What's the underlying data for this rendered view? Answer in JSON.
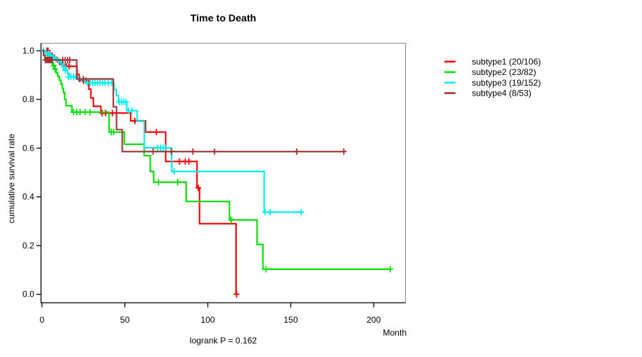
{
  "chart_data": {
    "type": "line",
    "variant": "kaplan_meier_step_plot",
    "title": "Time to Death",
    "xlabel": "Month",
    "ylabel": "cumulative survival rate",
    "annotation": "logrank P = 0.162",
    "xlim": [
      0,
      219
    ],
    "ylim": [
      0.0,
      1.0
    ],
    "grid": false,
    "legend_position": "right-outside",
    "xticks": [
      "0",
      "50",
      "100",
      "150",
      "200"
    ],
    "xtick_values": [
      0,
      50,
      100,
      150,
      200
    ],
    "yticks": [
      "0.0",
      "0.2",
      "0.4",
      "0.6",
      "0.8",
      "1.0"
    ],
    "ytick_values": [
      0.0,
      0.2,
      0.4,
      0.6,
      0.8,
      1.0
    ],
    "series": [
      {
        "name": "subtype1 (20/106)",
        "color": "#ff0000",
        "end": 117.3,
        "steps": [
          [
            0,
            1.0
          ],
          [
            4,
            0.99
          ],
          [
            6,
            0.981
          ],
          [
            7.5,
            0.971
          ],
          [
            9,
            0.962
          ],
          [
            10.5,
            0.953
          ],
          [
            12,
            0.944
          ],
          [
            13.5,
            0.936
          ],
          [
            21.2,
            0.903
          ],
          [
            22.3,
            0.877
          ],
          [
            28.3,
            0.842
          ],
          [
            29.5,
            0.806
          ],
          [
            31,
            0.772
          ],
          [
            35.5,
            0.744
          ],
          [
            53.5,
            0.712
          ],
          [
            62.5,
            0.666
          ],
          [
            74.6,
            0.545
          ],
          [
            93.5,
            0.437
          ],
          [
            95,
            0.29
          ],
          [
            117,
            0.0
          ]
        ],
        "censors": [
          [
            3,
            1.0
          ],
          [
            3.7,
            1.0
          ],
          [
            10.8,
            0.953
          ],
          [
            12.6,
            0.944
          ],
          [
            14.6,
            0.936
          ],
          [
            16.3,
            0.936
          ],
          [
            25,
            0.877
          ],
          [
            26.5,
            0.877
          ],
          [
            36.2,
            0.744
          ],
          [
            38.3,
            0.744
          ],
          [
            42.5,
            0.744
          ],
          [
            56,
            0.712
          ],
          [
            69,
            0.666
          ],
          [
            82.9,
            0.545
          ],
          [
            86.4,
            0.545
          ],
          [
            88.6,
            0.545
          ],
          [
            94.2,
            0.437
          ],
          [
            117.3,
            0.0
          ]
        ]
      },
      {
        "name": "subtype2 (23/82)",
        "color": "#00e000",
        "end": 210,
        "steps": [
          [
            0,
            1.0
          ],
          [
            2.5,
            0.988
          ],
          [
            3.5,
            0.976
          ],
          [
            4.5,
            0.963
          ],
          [
            5.5,
            0.951
          ],
          [
            6.5,
            0.939
          ],
          [
            7.5,
            0.924
          ],
          [
            8.5,
            0.909
          ],
          [
            9.5,
            0.894
          ],
          [
            10.5,
            0.879
          ],
          [
            11.5,
            0.862
          ],
          [
            12.3,
            0.845
          ],
          [
            13,
            0.828
          ],
          [
            13.7,
            0.8
          ],
          [
            14.5,
            0.774
          ],
          [
            18,
            0.748
          ],
          [
            40.4,
            0.666
          ],
          [
            49.7,
            0.616
          ],
          [
            61.6,
            0.569
          ],
          [
            65.3,
            0.504
          ],
          [
            67.4,
            0.46
          ],
          [
            87,
            0.381
          ],
          [
            113,
            0.305
          ],
          [
            129.7,
            0.205
          ],
          [
            133.2,
            0.103
          ]
        ],
        "censors": [
          [
            7,
            0.939
          ],
          [
            8,
            0.924
          ],
          [
            19,
            0.748
          ],
          [
            21,
            0.748
          ],
          [
            23,
            0.748
          ],
          [
            26,
            0.748
          ],
          [
            29,
            0.748
          ],
          [
            41.8,
            0.666
          ],
          [
            43.2,
            0.666
          ],
          [
            70.3,
            0.46
          ],
          [
            81.8,
            0.46
          ],
          [
            114,
            0.305
          ],
          [
            135,
            0.103
          ],
          [
            210,
            0.103
          ]
        ]
      },
      {
        "name": "subtype3 (19/152)",
        "color": "#00eeee",
        "end": 156.3,
        "steps": [
          [
            0,
            1.0
          ],
          [
            2,
            0.993
          ],
          [
            3.5,
            0.987
          ],
          [
            5,
            0.98
          ],
          [
            6.5,
            0.973
          ],
          [
            8,
            0.966
          ],
          [
            9.5,
            0.959
          ],
          [
            11,
            0.952
          ],
          [
            12.5,
            0.943
          ],
          [
            13.5,
            0.934
          ],
          [
            14.5,
            0.92
          ],
          [
            15.5,
            0.906
          ],
          [
            16.5,
            0.892
          ],
          [
            22,
            0.88
          ],
          [
            26,
            0.868
          ],
          [
            43.5,
            0.84
          ],
          [
            44.8,
            0.815
          ],
          [
            46.2,
            0.79
          ],
          [
            51.1,
            0.754
          ],
          [
            57.4,
            0.71
          ],
          [
            61.7,
            0.601
          ],
          [
            78.2,
            0.504
          ],
          [
            134,
            0.337
          ]
        ],
        "censors": [
          [
            1,
            1.0
          ],
          [
            2.5,
            0.993
          ],
          [
            4,
            0.987
          ],
          [
            5.5,
            0.98
          ],
          [
            7,
            0.973
          ],
          [
            8.5,
            0.966
          ],
          [
            10,
            0.959
          ],
          [
            11.5,
            0.952
          ],
          [
            13,
            0.934
          ],
          [
            14,
            0.92
          ],
          [
            16,
            0.892
          ],
          [
            17.5,
            0.892
          ],
          [
            19,
            0.892
          ],
          [
            20.5,
            0.892
          ],
          [
            27.5,
            0.868
          ],
          [
            29,
            0.868
          ],
          [
            30.5,
            0.868
          ],
          [
            32,
            0.868
          ],
          [
            33.5,
            0.868
          ],
          [
            35,
            0.868
          ],
          [
            36.5,
            0.868
          ],
          [
            38,
            0.868
          ],
          [
            40,
            0.868
          ],
          [
            42,
            0.868
          ],
          [
            46.6,
            0.79
          ],
          [
            48,
            0.79
          ],
          [
            49.3,
            0.79
          ],
          [
            50.6,
            0.79
          ],
          [
            52.2,
            0.754
          ],
          [
            54.2,
            0.754
          ],
          [
            69.8,
            0.601
          ],
          [
            71.5,
            0.601
          ],
          [
            73,
            0.601
          ],
          [
            74.5,
            0.601
          ],
          [
            79.7,
            0.504
          ],
          [
            134.5,
            0.337
          ],
          [
            137.5,
            0.337
          ],
          [
            156.3,
            0.337
          ]
        ]
      },
      {
        "name": "subtype4 (8/53)",
        "color": "#a03232",
        "end": 182,
        "steps": [
          [
            0,
            1.0
          ],
          [
            1,
            0.981
          ],
          [
            1.8,
            0.962
          ],
          [
            21,
            0.884
          ],
          [
            43,
            0.77
          ],
          [
            45,
            0.676
          ],
          [
            48.4,
            0.586
          ]
        ],
        "censors": [
          [
            2,
            0.962
          ],
          [
            2.7,
            0.962
          ],
          [
            3.4,
            0.962
          ],
          [
            4.1,
            0.962
          ],
          [
            4.8,
            0.962
          ],
          [
            5.5,
            0.962
          ],
          [
            6.2,
            0.962
          ],
          [
            12.5,
            0.962
          ],
          [
            14,
            0.962
          ],
          [
            15.5,
            0.962
          ],
          [
            16.8,
            0.962
          ],
          [
            22.7,
            0.884
          ],
          [
            24.9,
            0.884
          ],
          [
            67,
            0.586
          ],
          [
            78,
            0.586
          ],
          [
            91,
            0.586
          ],
          [
            104,
            0.586
          ],
          [
            153.5,
            0.586
          ],
          [
            182,
            0.586
          ]
        ]
      }
    ]
  }
}
